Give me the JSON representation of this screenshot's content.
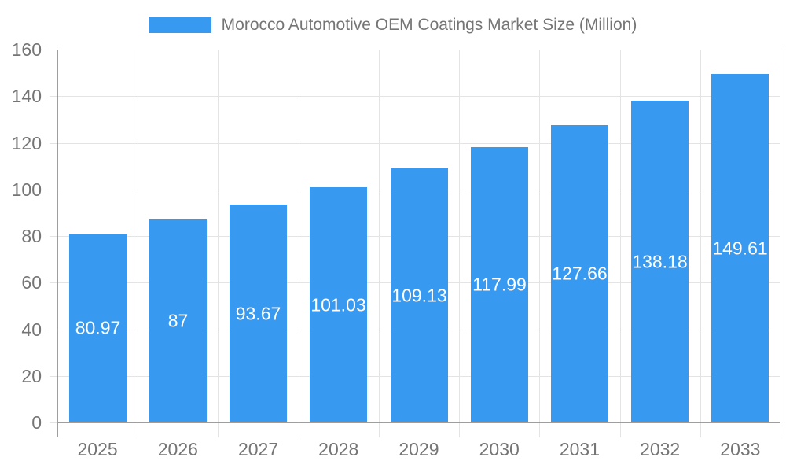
{
  "chart_data": {
    "type": "bar",
    "title": "Morocco Automotive OEM Coatings Market Size (Million)",
    "categories": [
      "2025",
      "2026",
      "2027",
      "2028",
      "2029",
      "2030",
      "2031",
      "2032",
      "2033"
    ],
    "values": [
      80.97,
      87,
      93.67,
      101.03,
      109.13,
      117.99,
      127.66,
      138.18,
      149.61
    ],
    "value_labels": [
      "80.97",
      "87",
      "93.67",
      "101.03",
      "109.13",
      "117.99",
      "127.66",
      "138.18",
      "149.61"
    ],
    "xlabel": "",
    "ylabel": "",
    "ylim": [
      0,
      160
    ],
    "yticks": [
      0,
      20,
      40,
      60,
      80,
      100,
      120,
      140,
      160
    ],
    "grid": true,
    "legend_position": "top",
    "colors": {
      "bar": "#3899F0",
      "bar_label": "#FFFFFF",
      "axis_text": "#757575",
      "grid_line": "#E4E4E4",
      "axis_line": "#9E9E9E",
      "background": "#FFFFFF"
    }
  }
}
